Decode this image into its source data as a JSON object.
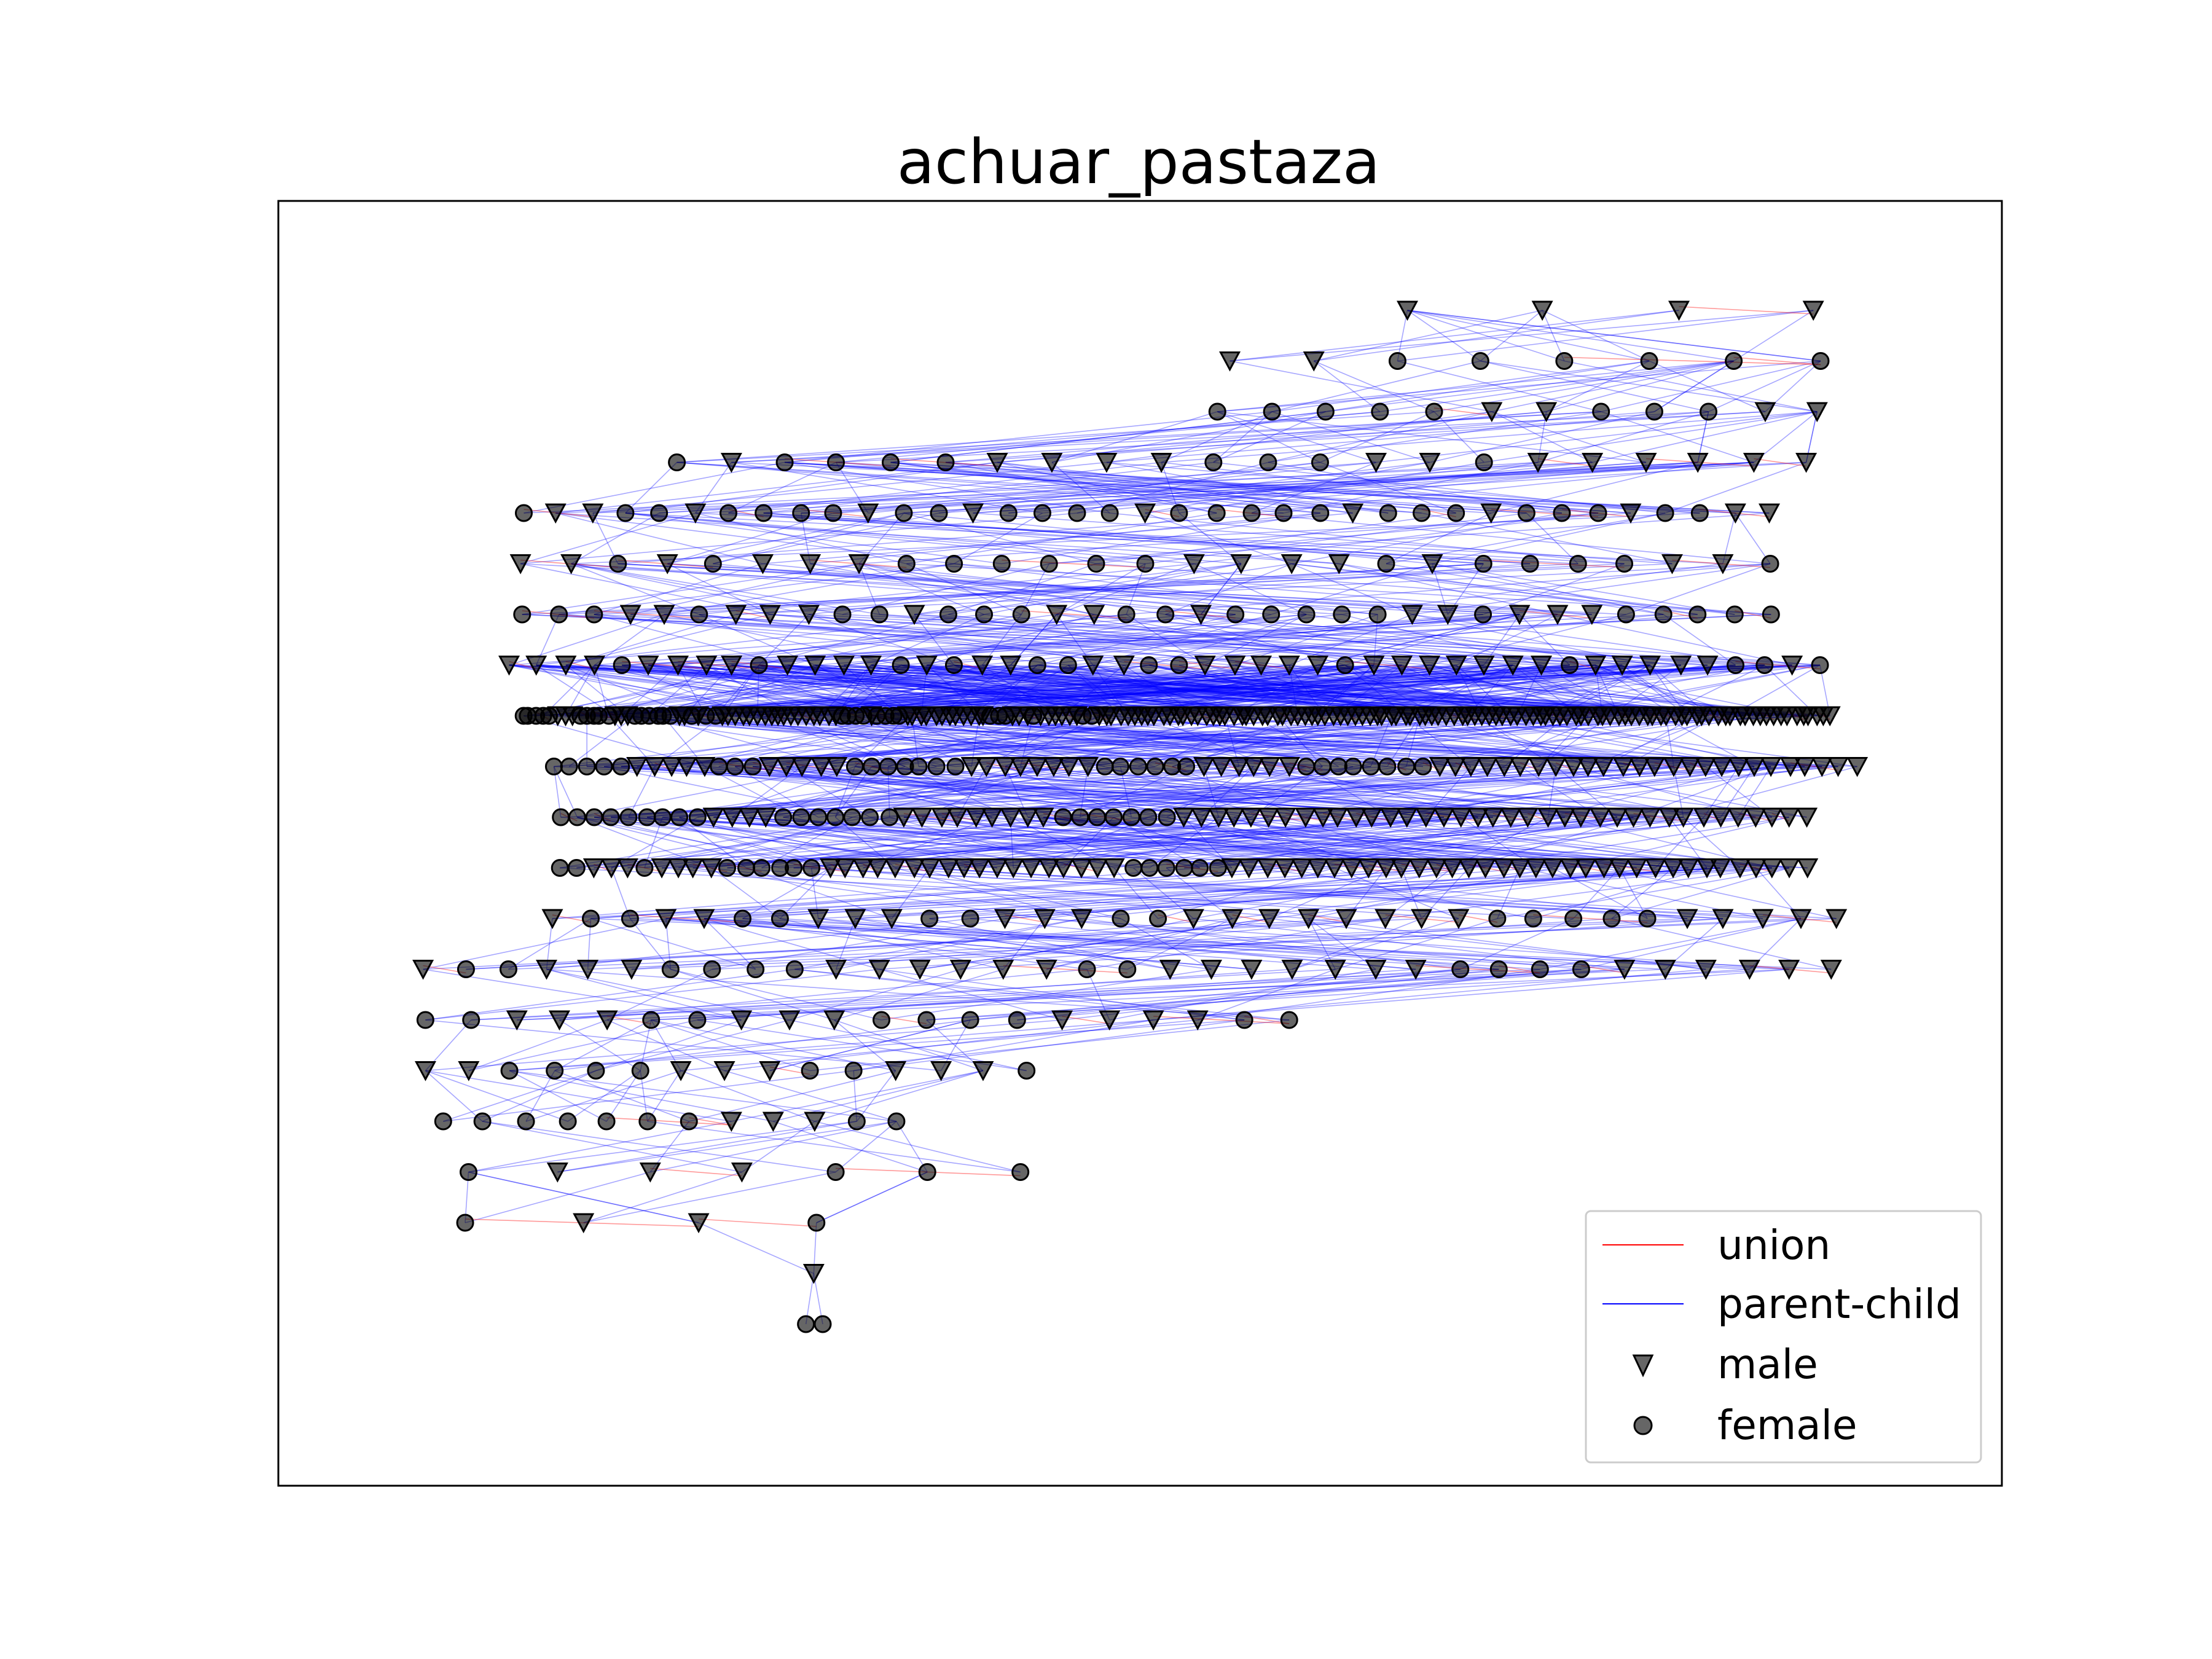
{
  "title": "achuar_pastaza",
  "legend": {
    "placement": "lower-right",
    "entries": [
      {
        "key": "union",
        "label": "union",
        "kind": "line",
        "color": "#ff0000"
      },
      {
        "key": "parent_child",
        "label": "parent-child",
        "kind": "line",
        "color": "#0000ff"
      },
      {
        "key": "male",
        "label": "male",
        "kind": "triangle-down",
        "color": "#000000"
      },
      {
        "key": "female",
        "label": "female",
        "kind": "circle",
        "color": "#000000"
      }
    ]
  },
  "colors": {
    "union": "#ff0000",
    "parent_child": "#0000ff",
    "node": "#000000"
  },
  "diagram": {
    "type": "genealogy-network",
    "rows": [
      {
        "level": 0,
        "nodes": "MMMM"
      },
      {
        "level": 1,
        "nodes": "MMFFFFFF"
      },
      {
        "level": 2,
        "nodes": "FFFFFMMFFFMM"
      },
      {
        "level": 3,
        "nodes": "FMFFFFMMMMFFFMMFMMMMMM"
      },
      {
        "level": 4,
        "nodes": "FMMFFMFFFFMFFMFFFFMFFFFFMFFFMFFFMFFMM"
      },
      {
        "level": 5,
        "nodes": "MMFMFMMMFFFFFFMMMMFMFFFFMMF"
      },
      {
        "level": 6,
        "nodes": "FFFMMFMMMFFMFFFMMFFMFFFFFMMFMMMFFFFF"
      },
      {
        "level": 7,
        "nodes": "MMMMFMMMMFMMMMFMFMMFFMMFFMMMMMFMMMMMMMFMMMMMFFMF"
      },
      {
        "level": 8,
        "nodes": "FFFFFMMMFFFFFMMMFFFFFFMMFMFFMMMMMMMMMMMMMMMMMFFFFMFFFFMMMMMMMMMMMMFFFMMMFMMMMMMFFMMMMMMMMMMMMMMMMMMMMMMMMMMMMMMMMMMMMMMMMMMMMMMMMMMMMMMMMMMMMMMMMMMMMMMMMMMMMMMMMMMMMMMMMMMMMMMMMMMMMMMMM"
      },
      {
        "level": 9,
        "nodes": "FFFFFMMMMMFFFMMMMMFFFFFFFMMMMMMMMFFFFFFMMMMMMFFFFFFFFMMMMMMMMMMMMMMMMMMMMMMMMMM"
      },
      {
        "level": 10,
        "nodes": "FFFFFFFFFMMMMFFFFFFFMMMMMMMMMFFFFFFFMMMMMMMMMMMMMMMMMMMMMMMMMMMMMMMMMMMMM"
      },
      {
        "level": 11,
        "nodes": "FFMMMFMMMMFFFFFFMMMMMMMMMMMMMMMMMMFFFFFFMMMMMMMMMMMMMMMMMMMMMMMMMMMMMMMMMMM"
      },
      {
        "level": 12,
        "nodes": "MFFMMFFMMMFFMMMFFMMMMMMMMFFFFFMMMMM"
      },
      {
        "level": 13,
        "nodes": "MFFMMMFFFFMMMMMMFFMMMMMMMFFFFMMMMMM"
      },
      {
        "level": 14,
        "nodes": "FFMMMFFMMMFFFFMMMMFF"
      },
      {
        "level": 15,
        "nodes": "MMFFFFMMMFFMMMF"
      },
      {
        "level": 16,
        "nodes": "FFFFFFFMMMFF"
      },
      {
        "level": 17,
        "nodes": "FMMMFFF"
      },
      {
        "level": 18,
        "nodes": "FMMF"
      },
      {
        "level": 19,
        "nodes": "M"
      },
      {
        "level": 20,
        "nodes": "FF"
      }
    ]
  }
}
